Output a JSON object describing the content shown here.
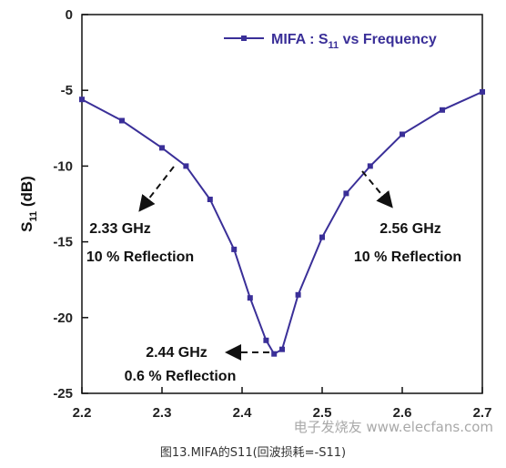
{
  "chart_data": {
    "type": "line",
    "ylabel": "S11 (dB)",
    "ylabel_main": "S",
    "ylabel_sub": "11",
    "ylabel_unit": " (dB)",
    "xlim": [
      2.2,
      2.7
    ],
    "ylim": [
      -25,
      0
    ],
    "x_ticks": [
      2.2,
      2.3,
      2.4,
      2.5,
      2.6,
      2.7
    ],
    "x_tick_labels": [
      "2.2",
      "2.3",
      "2.4",
      "2.5",
      "2.6",
      "2.7"
    ],
    "y_ticks": [
      0,
      -5,
      -10,
      -15,
      -20,
      -25
    ],
    "y_tick_labels": [
      "0",
      "-5",
      "-10",
      "-15",
      "-20",
      "-25"
    ],
    "grid": false,
    "legend_position": "top-right",
    "series": [
      {
        "name": "MIFA : S11 vs Frequency",
        "color": "#3a2f98",
        "marker": "square",
        "x": [
          2.2,
          2.25,
          2.3,
          2.33,
          2.36,
          2.39,
          2.41,
          2.43,
          2.44,
          2.45,
          2.47,
          2.5,
          2.53,
          2.56,
          2.6,
          2.65,
          2.7
        ],
        "y": [
          -5.6,
          -7.0,
          -8.8,
          -10.0,
          -12.2,
          -15.5,
          -18.7,
          -21.5,
          -22.4,
          -22.1,
          -18.5,
          -14.7,
          -11.8,
          -10.0,
          -7.9,
          -6.3,
          -5.1
        ]
      }
    ],
    "legend": {
      "main": "MIFA : S",
      "sub": "11",
      "rest": " vs Frequency"
    },
    "annotations": [
      {
        "line1": "2.33 GHz",
        "line2": "10 % Reflection"
      },
      {
        "line1": "2.56 GHz",
        "line2": "10 % Reflection"
      },
      {
        "line1": "2.44 GHz",
        "line2": "0.6 % Reflection"
      }
    ]
  },
  "caption": "图13.MIFA的S11(回波损耗=-S11)",
  "watermark": "电子发烧友 www.elecfans.com"
}
